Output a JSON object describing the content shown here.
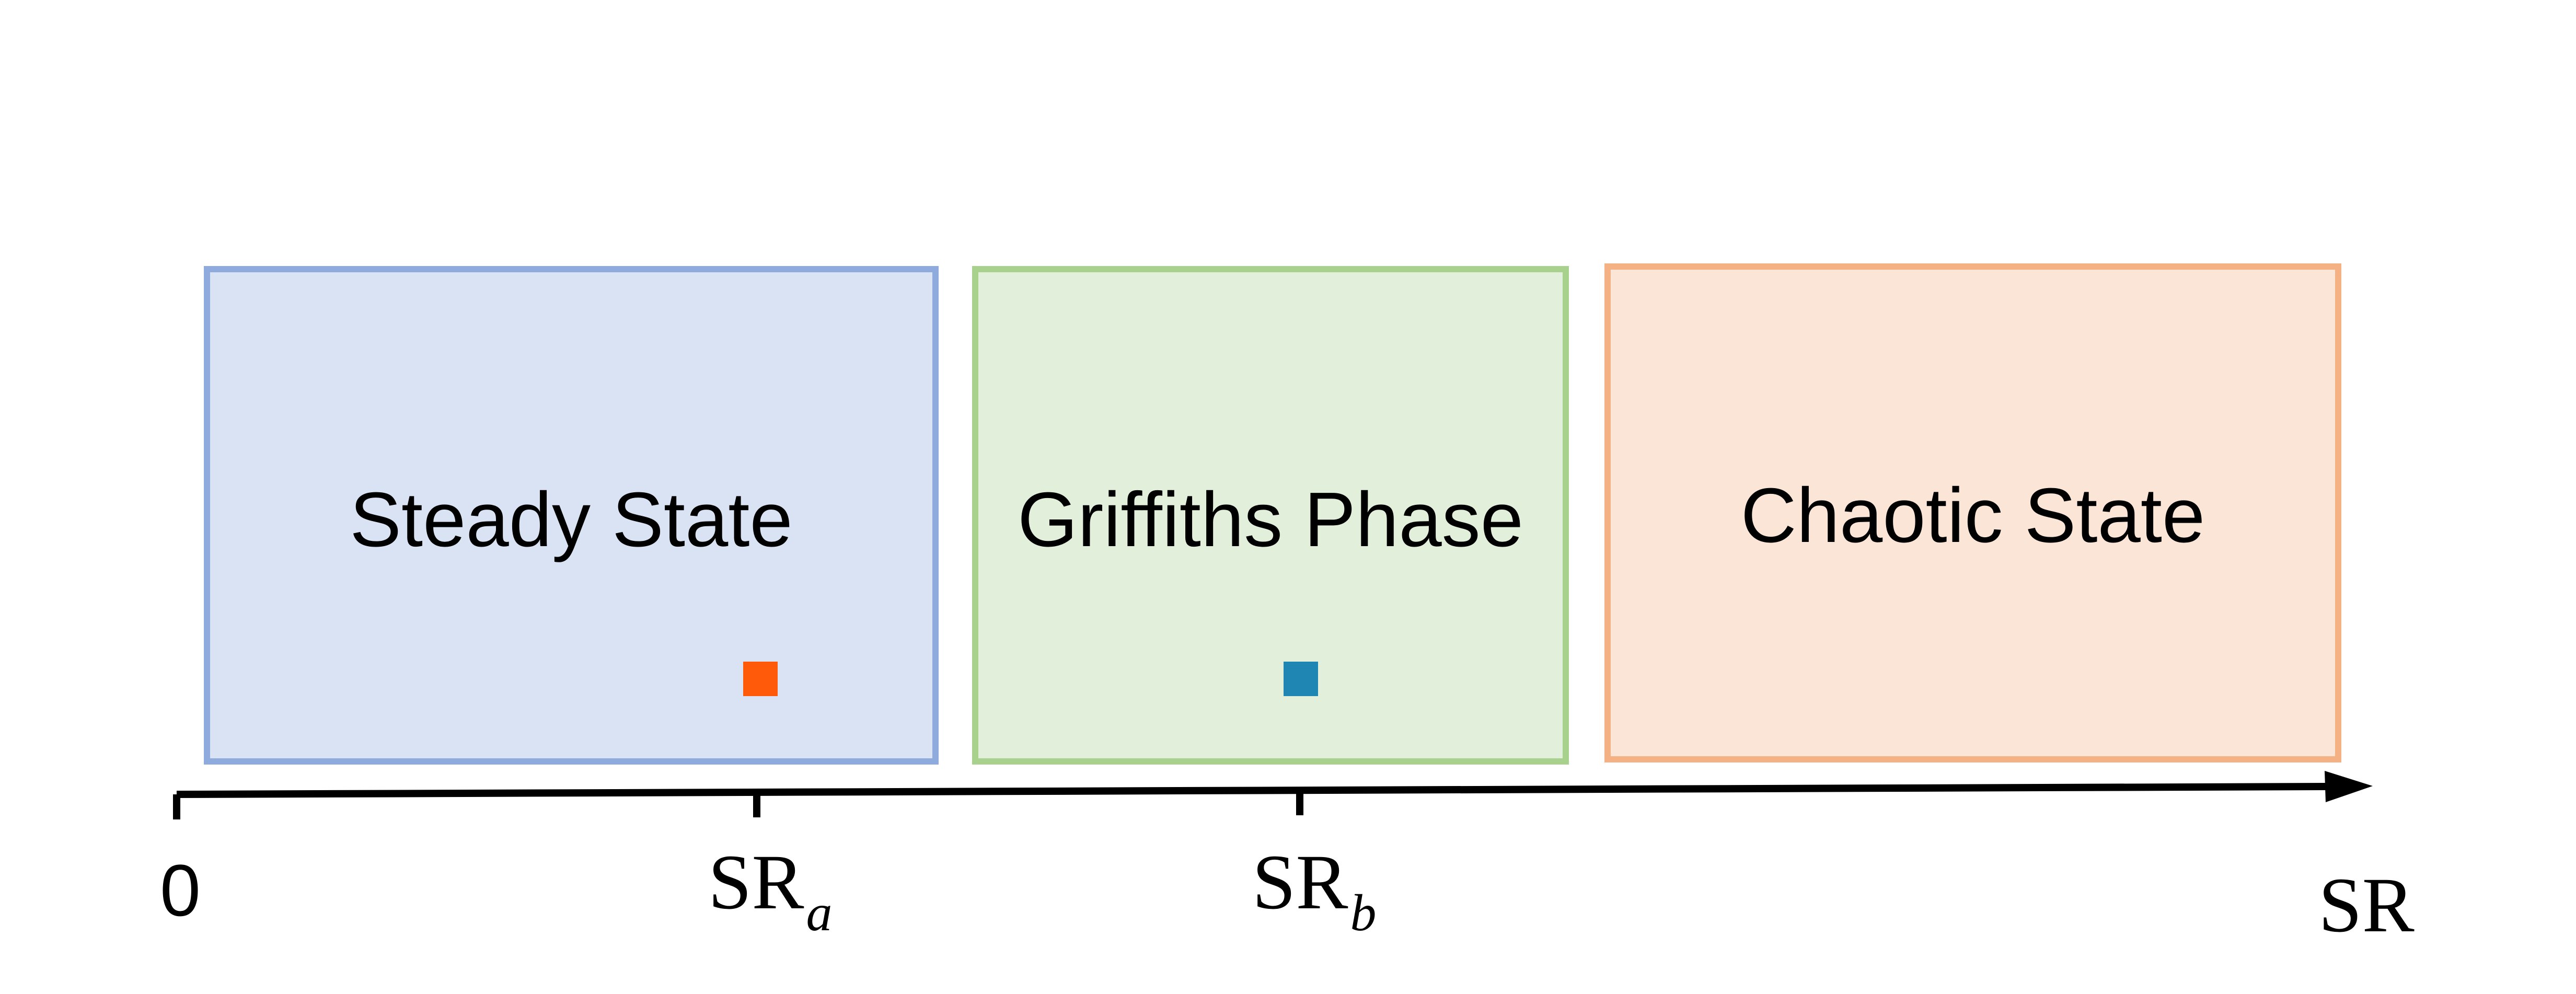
{
  "regions": [
    {
      "label": "Steady State",
      "fill": "#dae3f3",
      "stroke": "#8faadc"
    },
    {
      "label": "Griffiths Phase",
      "fill": "#e2efda",
      "stroke": "#a9d18e"
    },
    {
      "label": "Chaotic State",
      "fill": "#fbe5d6",
      "stroke": "#f4b183"
    }
  ],
  "markers": [
    {
      "name": "orange-square",
      "color": "#ff5a0a"
    },
    {
      "name": "blue-square",
      "color": "#1f86b4"
    }
  ],
  "axis": {
    "origin_label": "0",
    "ticks": [
      {
        "base": "SR",
        "sub": "a"
      },
      {
        "base": "SR",
        "sub": "b"
      }
    ],
    "end_label": "SR",
    "color": "#000000"
  }
}
